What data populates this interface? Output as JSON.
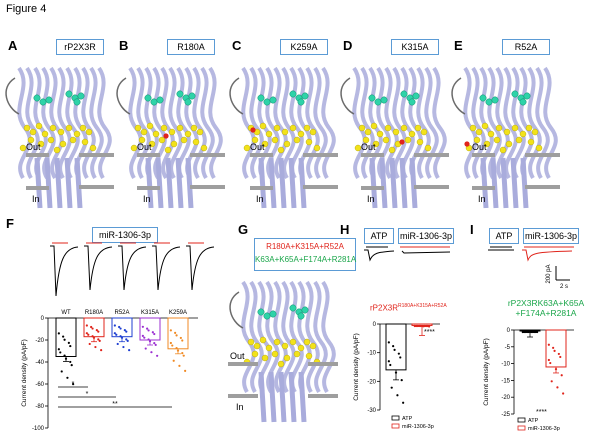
{
  "figure_title": "Figure 4",
  "panels": {
    "A": {
      "letter": "A",
      "box": "rP2X3R"
    },
    "B": {
      "letter": "B",
      "box": "R180A"
    },
    "C": {
      "letter": "C",
      "box": "K259A"
    },
    "D": {
      "letter": "D",
      "box": "K315A"
    },
    "E": {
      "letter": "E",
      "box": "R52A"
    },
    "F": {
      "letter": "F",
      "box": "miR-1306-3p"
    },
    "G": {
      "letter": "G",
      "box_line1": "R180A+K315A+R52A",
      "box_line2": "K63A+K65A+F174A+R281A"
    },
    "H": {
      "letter": "H",
      "box_atp": "ATP",
      "box_mir": "miR-1306-3p",
      "title_main": "rP2X3R",
      "title_sup": "R180A+K315A+R52A",
      "stars": "****"
    },
    "I": {
      "letter": "I",
      "box_atp": "ATP",
      "box_mir": "miR-1306-3p",
      "title_line1": "rP2X3RK63A+K65A",
      "title_line2": "+F174A+R281A",
      "stars": "****",
      "scale_y": "200 pA",
      "scale_x": "2 s"
    }
  },
  "membrane_labels": {
    "out": "Out",
    "in": "In"
  },
  "colors": {
    "protein": "#a9acdc",
    "cyan_sites": "#2ed3a8",
    "yellow_sites": "#f2e21a",
    "red_sites": "#e0241b",
    "membrane": "#9e9e9e",
    "box_border": "#5b9bd5",
    "red_title": "#e0241b",
    "green_title": "#1aa64a"
  },
  "chart_data": [
    {
      "type": "bar",
      "panel": "F",
      "categories": [
        "WT",
        "R180A",
        "R52A",
        "K315A",
        "K259A"
      ],
      "values": [
        -35,
        -17,
        -17,
        -20,
        -28
      ],
      "bar_colors": [
        "#000000",
        "#e0241b",
        "#1f3fd1",
        "#9b2fd1",
        "#f08a24"
      ],
      "ylabel": "Current density (pA/pF)",
      "ylim": [
        -100,
        0
      ],
      "yticks": [
        "0",
        "-20",
        "-40",
        "-60",
        "-80",
        "-100"
      ],
      "significance": [
        "*",
        "*",
        "**"
      ]
    },
    {
      "type": "bar",
      "panel": "H",
      "categories": [
        "ATP",
        "miR-1306-3p"
      ],
      "values": [
        -16,
        -0.5
      ],
      "ylabel": "Current density (pA/pF)",
      "ylim": [
        -30,
        0
      ],
      "yticks": [
        "0",
        "-10",
        "-20",
        "-30"
      ],
      "legend": [
        "ATP",
        "miR-1306-3p"
      ]
    },
    {
      "type": "bar",
      "panel": "I",
      "categories": [
        "ATP",
        "miR-1306-3p"
      ],
      "values": [
        -0.3,
        -11
      ],
      "ylabel": "Current density (pA/pF)",
      "ylim": [
        -25,
        0
      ],
      "yticks": [
        "0",
        "-5",
        "-10",
        "-15",
        "-20",
        "-25"
      ],
      "legend": [
        "ATP",
        "miR-1306-3p"
      ]
    }
  ]
}
